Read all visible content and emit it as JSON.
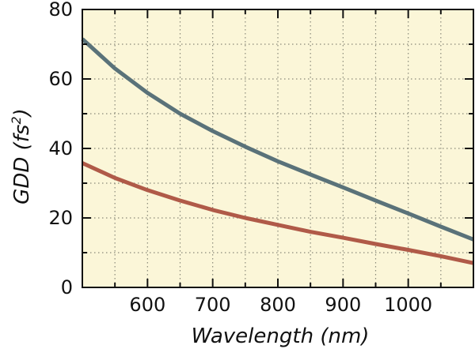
{
  "chart_data": {
    "type": "line",
    "title": "",
    "xlabel": "Wavelength (nm)",
    "ylabel": {
      "prefix": "GDD (fs",
      "superscript": "2",
      "suffix": ")"
    },
    "xlim": [
      500,
      1100
    ],
    "ylim": [
      0,
      80
    ],
    "x_major_ticks": [
      600,
      700,
      800,
      900,
      1000
    ],
    "x_major_tick_labels": [
      "600",
      "700",
      "800",
      "900",
      "1000"
    ],
    "x_minor_ticks": [
      550,
      650,
      750,
      850,
      950,
      1050
    ],
    "y_major_ticks": [
      0,
      20,
      40,
      60,
      80
    ],
    "y_major_tick_labels": [
      "0",
      "20",
      "40",
      "60",
      "80"
    ],
    "y_minor_ticks": [
      10,
      30,
      50,
      70
    ],
    "grid": true,
    "legend": "none",
    "colors": {
      "plot_background": "#fbf6d8",
      "grid": "#8a8a7a",
      "frame": "#111111"
    },
    "series": [
      {
        "name": "upper curve",
        "color": "#5a7279",
        "x": [
          500,
          550,
          600,
          650,
          700,
          750,
          800,
          850,
          900,
          950,
          1000,
          1050,
          1100
        ],
        "values": [
          71.5,
          63.0,
          56.0,
          50.0,
          45.0,
          40.5,
          36.3,
          32.5,
          28.8,
          25.0,
          21.3,
          17.5,
          13.8
        ]
      },
      {
        "name": "lower curve",
        "color": "#b05a48",
        "x": [
          500,
          550,
          600,
          650,
          700,
          750,
          800,
          850,
          900,
          950,
          1000,
          1050,
          1100
        ],
        "values": [
          35.8,
          31.5,
          28.0,
          25.0,
          22.3,
          20.0,
          18.0,
          16.0,
          14.3,
          12.5,
          10.8,
          9.0,
          7.0
        ]
      }
    ]
  }
}
